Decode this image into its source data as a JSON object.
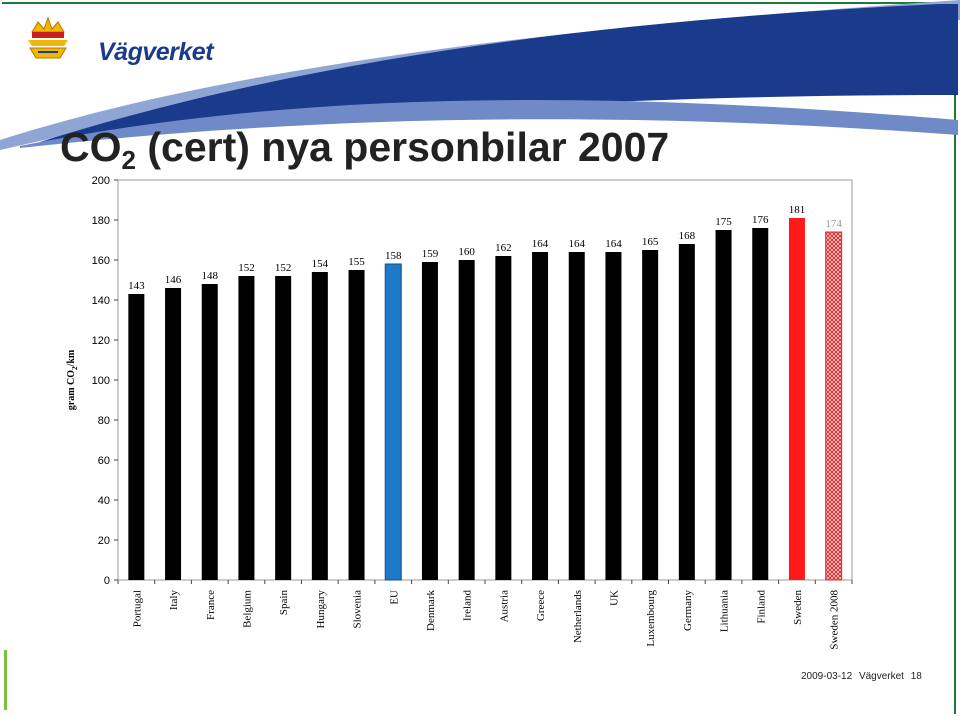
{
  "header": {
    "logo_text": "Vägverket",
    "title_main": "CO",
    "title_sub": "2",
    "title_rest": " (cert) nya personbilar 2007"
  },
  "footer": {
    "date": "2009-03-12",
    "org": "Vägverket",
    "page": "18"
  },
  "colors": {
    "brand_blue": "#1a3a8c",
    "bar_default": "#000000",
    "bar_eu": "#1f78c8",
    "bar_sweden": "#ff1a1a",
    "bar_sweden_2008": "#e03030"
  },
  "chart_data": {
    "type": "bar",
    "title": "",
    "xlabel": "",
    "ylabel": "gram CO2/km",
    "ylim": [
      0,
      200
    ],
    "yticks": [
      0,
      20,
      40,
      60,
      80,
      100,
      120,
      140,
      160,
      180,
      200
    ],
    "grid": false,
    "categories": [
      "Portugal",
      "Italy",
      "France",
      "Belgium",
      "Spain",
      "Hungary",
      "Slovenia",
      "EU",
      "Denmark",
      "Ireland",
      "Austria",
      "Greece",
      "Netherlands",
      "UK",
      "Luxembourg",
      "Germany",
      "Lithuania",
      "Finland",
      "Sweden",
      "Sweden 2008"
    ],
    "values": [
      143,
      146,
      148,
      152,
      152,
      154,
      155,
      158,
      159,
      160,
      162,
      164,
      164,
      164,
      165,
      168,
      175,
      176,
      181,
      174
    ],
    "bar_styles": [
      "default",
      "default",
      "default",
      "default",
      "default",
      "default",
      "default",
      "eu",
      "default",
      "default",
      "default",
      "default",
      "default",
      "default",
      "default",
      "default",
      "default",
      "default",
      "sweden",
      "sweden-2008-hatched"
    ]
  }
}
